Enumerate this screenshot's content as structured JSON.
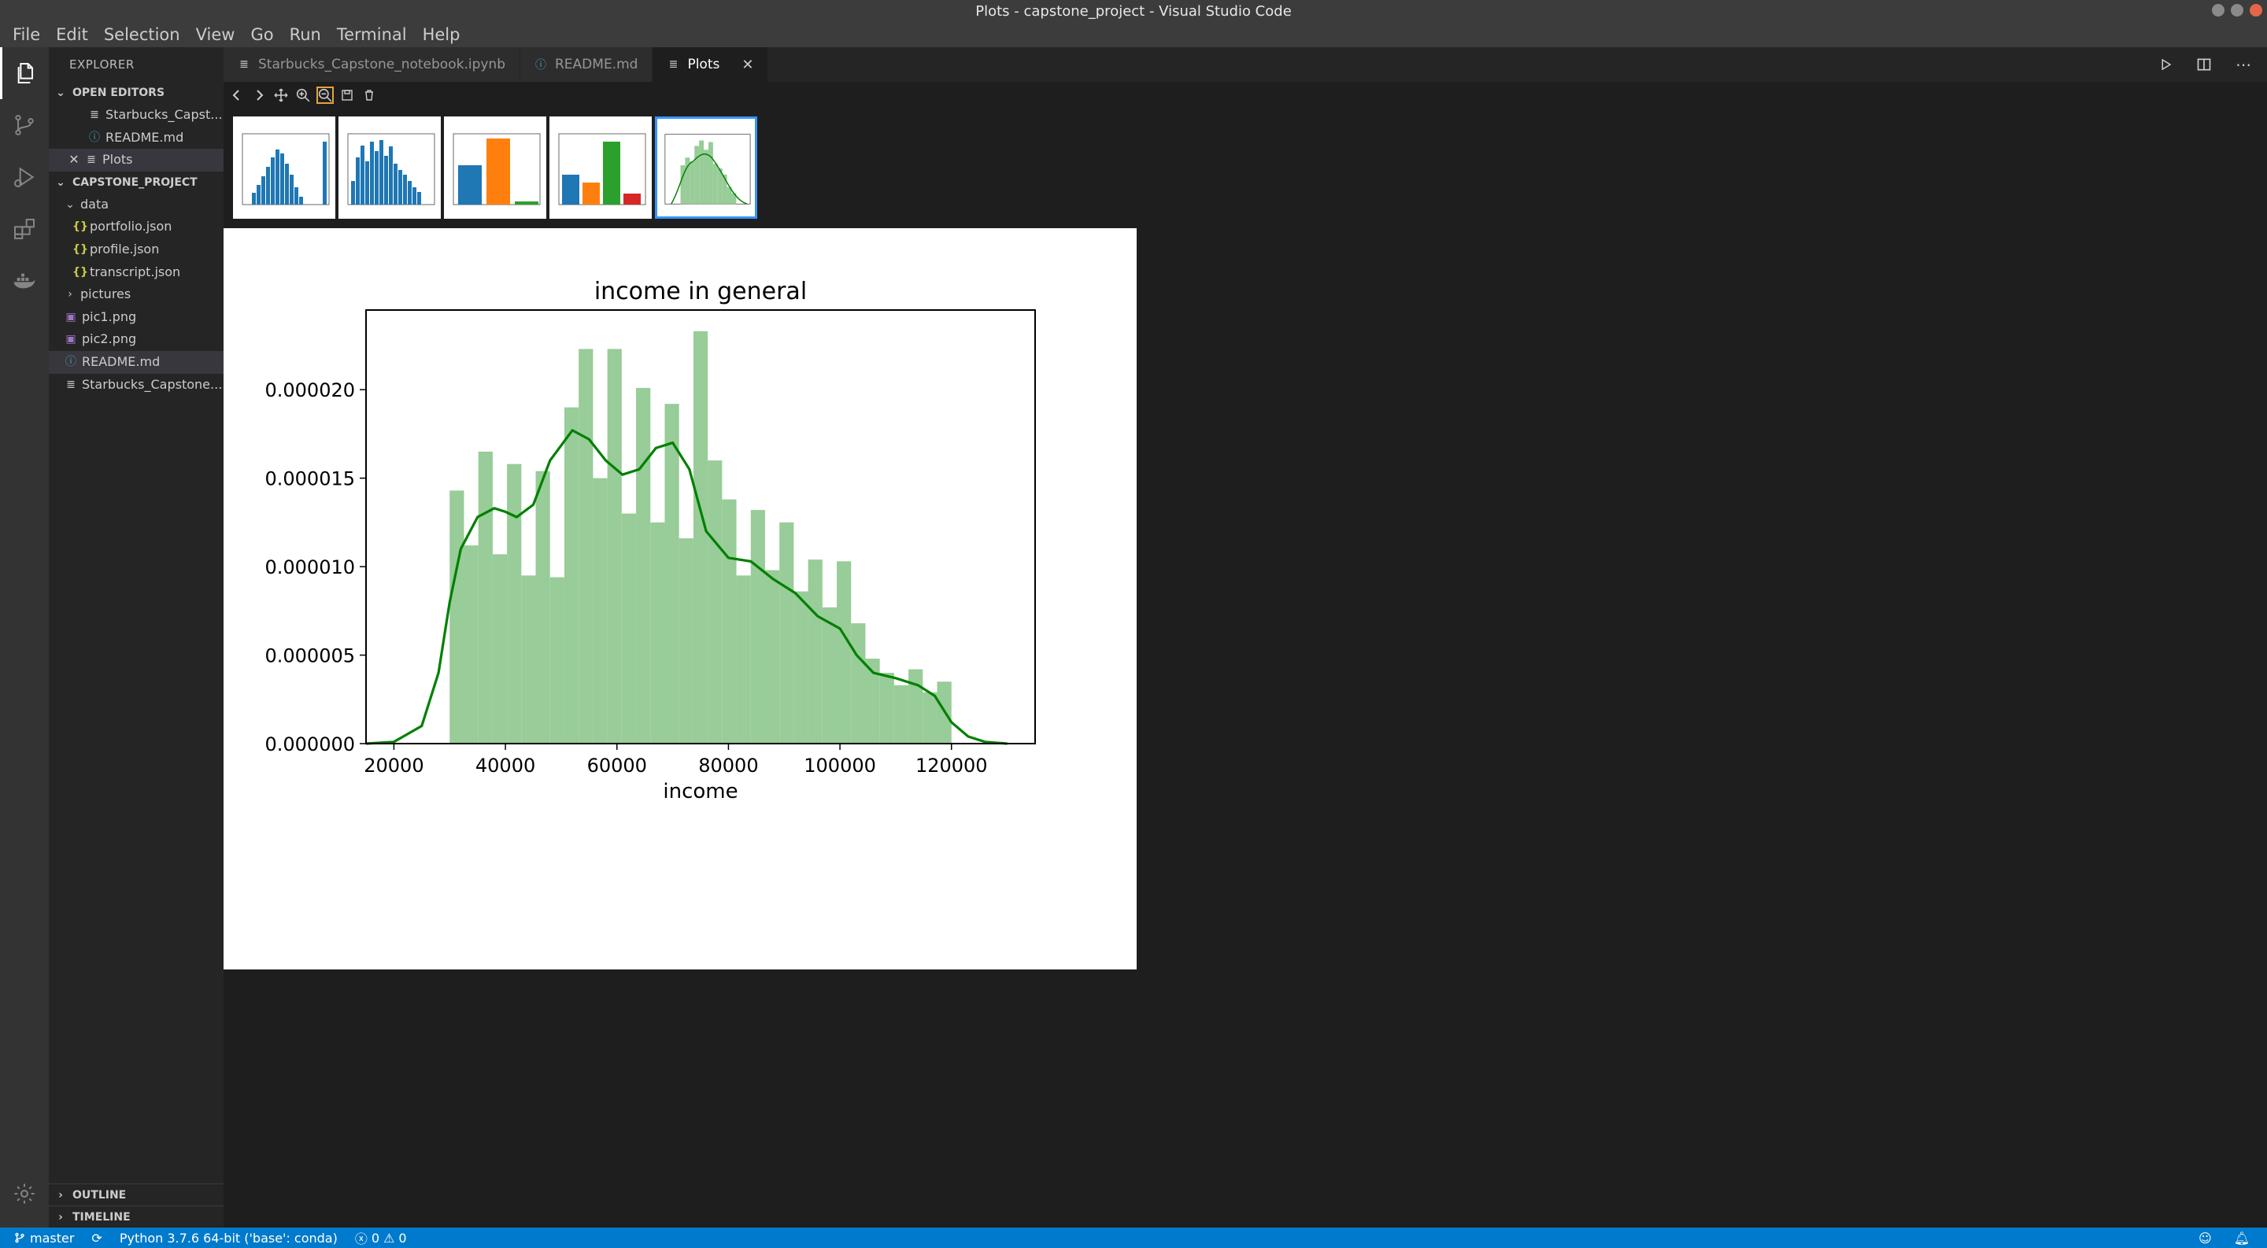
{
  "window": {
    "title": "Plots - capstone_project - Visual Studio Code"
  },
  "menu": [
    "File",
    "Edit",
    "Selection",
    "View",
    "Go",
    "Run",
    "Terminal",
    "Help"
  ],
  "sidebar": {
    "title": "EXPLORER",
    "open_editors": {
      "label": "OPEN EDITORS",
      "items": [
        {
          "label": "Starbucks_Capst..."
        },
        {
          "label": "README.md"
        },
        {
          "label": "Plots"
        }
      ]
    },
    "project": {
      "label": "CAPSTONE_PROJECT",
      "data_folder": "data",
      "data_files": [
        "portfolio.json",
        "profile.json",
        "transcript.json"
      ],
      "pictures_folder": "pictures",
      "files": [
        "pic1.png",
        "pic2.png",
        "README.md",
        "Starbucks_Capstone..."
      ]
    },
    "outline": "OUTLINE",
    "timeline": "TIMELINE"
  },
  "tabs": [
    {
      "label": "Starbucks_Capstone_notebook.ipynb"
    },
    {
      "label": "README.md"
    },
    {
      "label": "Plots"
    }
  ],
  "status": {
    "branch": "master",
    "python": "Python 3.7.6 64-bit ('base': conda)",
    "errors": "0",
    "warnings": "0"
  },
  "colors": {
    "hist_bar": "#98cc98",
    "kde_line": "#008000",
    "accent": "#007acc"
  },
  "chart_data": {
    "type": "bar",
    "title": "income in general",
    "xlabel": "income",
    "ylabel": "",
    "xlim": [
      15000,
      135000
    ],
    "ylim": [
      0,
      2.45e-05
    ],
    "xticks": [
      20000,
      40000,
      60000,
      80000,
      100000,
      120000
    ],
    "yticks": [
      0.0,
      5e-06,
      1e-05,
      1.5e-05,
      2e-05
    ],
    "ytick_labels": [
      "0.000000",
      "0.000005",
      "0.000010",
      "0.000015",
      "0.000020"
    ],
    "bins": {
      "start": 30000,
      "width": 2571.43
    },
    "values": [
      1.43e-05,
      1.12e-05,
      1.65e-05,
      1.07e-05,
      1.58e-05,
      9.5e-06,
      1.54e-05,
      9.4e-06,
      1.9e-05,
      2.23e-05,
      1.5e-05,
      2.23e-05,
      1.3e-05,
      2.01e-05,
      1.25e-05,
      1.92e-05,
      1.16e-05,
      2.33e-05,
      1.6e-05,
      1.38e-05,
      9.5e-06,
      1.32e-05,
      9.8e-06,
      1.25e-05,
      8.6e-06,
      1.04e-05,
      7.7e-06,
      1.03e-05,
      6.8e-06,
      4.8e-06,
      4e-06,
      3.3e-06,
      4.2e-06,
      2.9e-06,
      3.5e-06
    ],
    "kde": {
      "x": [
        15000,
        20000,
        25000,
        28000,
        30000,
        32000,
        35000,
        38000,
        40000,
        42000,
        45000,
        48000,
        52000,
        55000,
        58000,
        61000,
        64000,
        67000,
        70000,
        73000,
        76000,
        80000,
        84000,
        88000,
        92000,
        96000,
        100000,
        103000,
        106000,
        110000,
        114000,
        117000,
        120000,
        123000,
        126000,
        130000
      ],
      "y": [
        0,
        1e-07,
        1e-06,
        4e-06,
        8e-06,
        1.1e-05,
        1.28e-05,
        1.33e-05,
        1.31e-05,
        1.28e-05,
        1.35e-05,
        1.6e-05,
        1.77e-05,
        1.72e-05,
        1.6e-05,
        1.52e-05,
        1.55e-05,
        1.67e-05,
        1.7e-05,
        1.55e-05,
        1.2e-05,
        1.05e-05,
        1.03e-05,
        9.3e-06,
        8.5e-06,
        7.2e-06,
        6.5e-06,
        5e-06,
        4e-06,
        3.7e-06,
        3.3e-06,
        2.7e-06,
        1.2e-06,
        4e-07,
        1e-07,
        0
      ]
    }
  }
}
